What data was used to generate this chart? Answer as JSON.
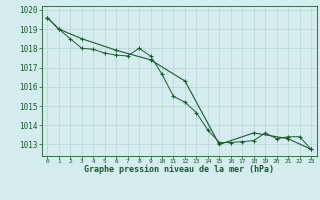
{
  "title": "Graphe pression niveau de la mer (hPa)",
  "bg_color": "#d4ecee",
  "grid_color": "#b8d4d6",
  "line_color": "#1a5c2a",
  "xlim": [
    -0.5,
    23.5
  ],
  "ylim": [
    1012.4,
    1020.2
  ],
  "yticks": [
    1013,
    1014,
    1015,
    1016,
    1017,
    1018,
    1019,
    1020
  ],
  "xticks": [
    0,
    1,
    2,
    3,
    4,
    5,
    6,
    7,
    8,
    9,
    10,
    11,
    12,
    13,
    14,
    15,
    16,
    17,
    18,
    19,
    20,
    21,
    22,
    23
  ],
  "series1_x": [
    0,
    1,
    2,
    3,
    4,
    5,
    6,
    7,
    8,
    9,
    10,
    11,
    12,
    13,
    14,
    15,
    16,
    17,
    18,
    19,
    20,
    21,
    22,
    23
  ],
  "series1_y": [
    1019.6,
    1019.0,
    1018.5,
    1018.0,
    1017.95,
    1017.75,
    1017.65,
    1017.6,
    1018.0,
    1017.6,
    1016.65,
    1015.5,
    1015.2,
    1014.65,
    1013.75,
    1013.1,
    1013.1,
    1013.15,
    1013.2,
    1013.6,
    1013.3,
    1013.4,
    1013.4,
    1012.75
  ],
  "series2_x": [
    0,
    1,
    3,
    6,
    9,
    12,
    15,
    18,
    21,
    23
  ],
  "series2_y": [
    1019.6,
    1019.0,
    1018.5,
    1017.9,
    1017.4,
    1016.3,
    1013.0,
    1013.6,
    1013.3,
    1012.75
  ]
}
